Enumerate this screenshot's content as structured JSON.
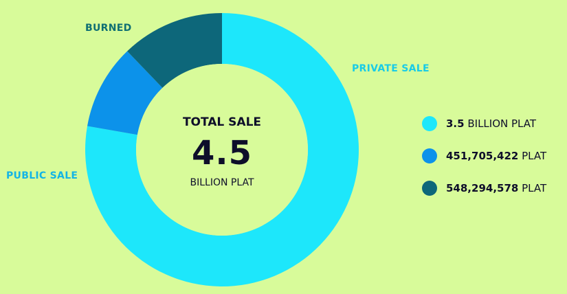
{
  "center": {
    "heading": "TOTAL SALE",
    "value": "4.5",
    "unit": "BILLION PLAT"
  },
  "chart_data": {
    "type": "pie",
    "total": 4500000000,
    "slices": [
      {
        "label": "PRIVATE SALE",
        "value": 3500000000,
        "color": "#1de7fb",
        "label_color": "#19cbe6"
      },
      {
        "label": "PUBLIC SALE",
        "value": 451705422,
        "color": "#0c92ea",
        "label_color": "#12b4e6"
      },
      {
        "label": "BURNED",
        "value": 548294578,
        "color": "#0d677a",
        "label_color": "#0f6f73"
      }
    ],
    "start_angle_deg": 0,
    "direction": "clockwise",
    "legend_position": "right"
  },
  "legend": [
    {
      "value": "3.5",
      "unit": "BILLION PLAT",
      "color": "#1de7fb"
    },
    {
      "value": "451,705,422",
      "unit": "PLAT",
      "color": "#0c92ea"
    },
    {
      "value": "548,294,578",
      "unit": "PLAT",
      "color": "#0d677a"
    }
  ]
}
